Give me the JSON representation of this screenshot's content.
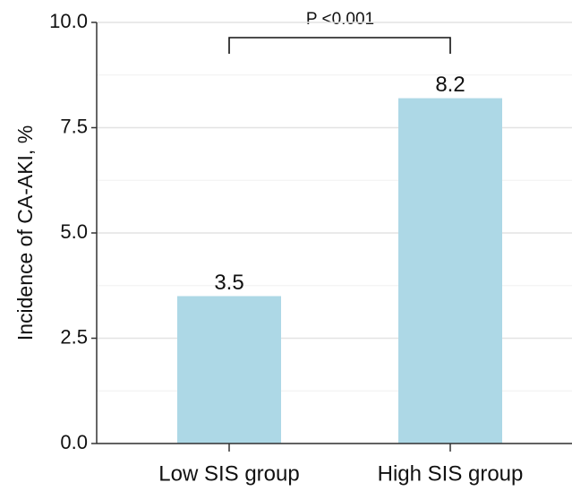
{
  "chart_data": {
    "type": "bar",
    "y_label": "Incidence of CA-AKI, %",
    "categories": [
      "Low SIS group",
      "High SIS group"
    ],
    "values": [
      3.5,
      8.2
    ],
    "color": "#add8e6",
    "ylim": [
      0,
      10
    ],
    "yticks": [
      {
        "value": 0,
        "label": "0.0"
      },
      {
        "value": 2.5,
        "label": "2.5"
      },
      {
        "value": 5,
        "label": "5.0"
      },
      {
        "value": 7.5,
        "label": "7.5"
      },
      {
        "value": 10,
        "label": "10.0"
      }
    ],
    "minor_yticks": [
      1.25,
      3.75,
      6.25,
      8.75
    ],
    "grid": true,
    "annotation": "P <0.001"
  }
}
